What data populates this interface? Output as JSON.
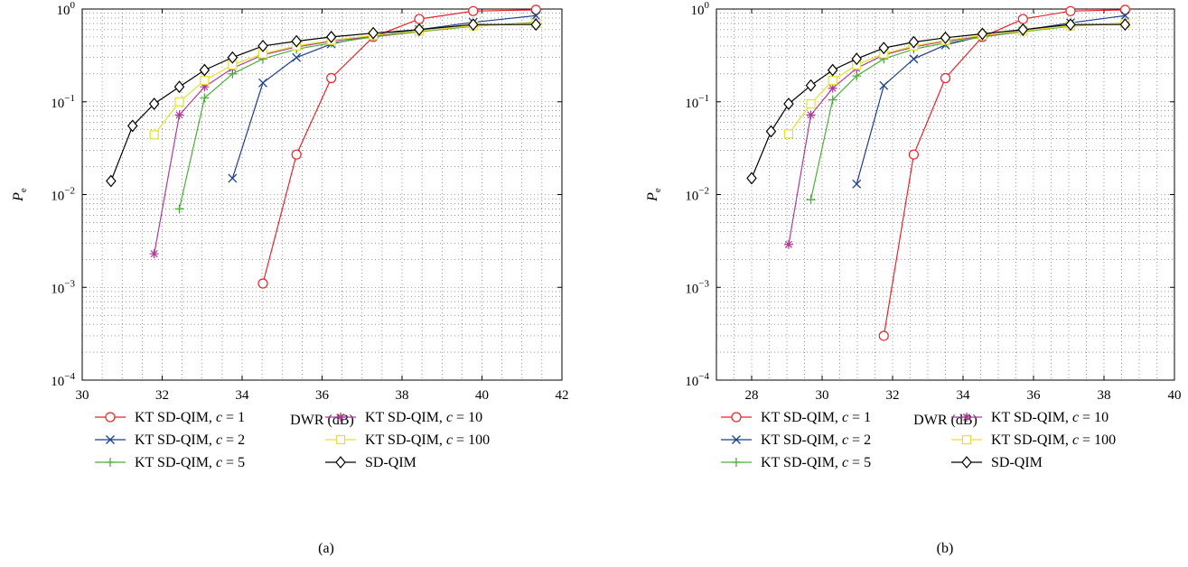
{
  "chart_data": [
    {
      "type": "line",
      "title": "",
      "caption": "(a)",
      "xlabel": "DWR (dB)",
      "ylabel": "P_e",
      "ylabel_main": "P",
      "ylabel_sub": "e",
      "y_scale": "log",
      "xlim": [
        30,
        42
      ],
      "ylim": [
        0.0001,
        1
      ],
      "x_ticks": [
        "30",
        "32",
        "34",
        "36",
        "38",
        "40",
        "42"
      ],
      "x_tick_values": [
        30,
        32,
        34,
        36,
        38,
        40,
        42
      ],
      "y_tick_values": [
        0.0001,
        0.001,
        0.01,
        0.1,
        1
      ],
      "y_tick_exponents": [
        "−4",
        "−3",
        "−2",
        "−1",
        "0"
      ],
      "y_tick_base": "10",
      "grid": true,
      "legend_position": "bottom",
      "series": [
        {
          "name": "KT SD-QIM, c = 1",
          "color": "#e8232a",
          "marker": "circle",
          "x": [
            34.52,
            35.36,
            36.23,
            37.28,
            38.43,
            39.78,
            41.35
          ],
          "y": [
            0.0011,
            0.027,
            0.18,
            0.5,
            0.78,
            0.95,
            0.98
          ]
        },
        {
          "name": "KT SD-QIM, c = 2",
          "color": "#1a3f8c",
          "marker": "x",
          "x": [
            33.76,
            34.52,
            35.36,
            36.23,
            37.28,
            38.43,
            39.78,
            41.35
          ],
          "y": [
            0.015,
            0.16,
            0.3,
            0.42,
            0.52,
            0.6,
            0.72,
            0.85
          ]
        },
        {
          "name": "KT SD-QIM, c = 5",
          "color": "#4cae3a",
          "marker": "plus",
          "x": [
            32.43,
            33.06,
            33.76,
            34.52,
            35.36,
            36.23,
            37.28,
            38.43,
            39.78,
            41.35
          ],
          "y": [
            0.007,
            0.11,
            0.2,
            0.29,
            0.37,
            0.43,
            0.5,
            0.57,
            0.65,
            0.72
          ]
        },
        {
          "name": "KT SD-QIM, c = 10",
          "color": "#b13a96",
          "marker": "star",
          "x": [
            31.8,
            32.43,
            33.06,
            33.76,
            34.52,
            35.36,
            36.23,
            37.28,
            38.43,
            39.78,
            41.35
          ],
          "y": [
            0.0023,
            0.072,
            0.145,
            0.23,
            0.32,
            0.39,
            0.45,
            0.51,
            0.58,
            0.66,
            0.7
          ]
        },
        {
          "name": "KT SD-QIM, c = 100",
          "color": "#e6e02a",
          "marker": "square",
          "x": [
            31.8,
            32.43,
            33.06,
            33.76,
            34.52,
            35.36,
            36.23,
            37.28,
            38.43,
            39.78,
            41.35
          ],
          "y": [
            0.044,
            0.1,
            0.17,
            0.25,
            0.33,
            0.4,
            0.46,
            0.52,
            0.58,
            0.66,
            0.7
          ]
        },
        {
          "name": "SD-QIM",
          "color": "#000000",
          "marker": "diamond",
          "x": [
            30.72,
            31.26,
            31.8,
            32.43,
            33.06,
            33.76,
            34.52,
            35.36,
            36.23,
            37.28,
            38.43,
            39.78,
            41.35
          ],
          "y": [
            0.014,
            0.055,
            0.095,
            0.145,
            0.22,
            0.3,
            0.4,
            0.45,
            0.5,
            0.55,
            0.6,
            0.68,
            0.68
          ]
        }
      ]
    },
    {
      "type": "line",
      "title": "",
      "caption": "(b)",
      "xlabel": "DWR (dB)",
      "ylabel": "P_e",
      "ylabel_main": "P",
      "ylabel_sub": "e",
      "y_scale": "log",
      "xlim": [
        27,
        40
      ],
      "ylim": [
        0.0001,
        1
      ],
      "x_ticks": [
        "28",
        "30",
        "32",
        "34",
        "36",
        "38",
        "40"
      ],
      "x_tick_values": [
        28,
        30,
        32,
        34,
        36,
        38,
        40
      ],
      "y_tick_values": [
        0.0001,
        0.001,
        0.01,
        0.1,
        1
      ],
      "y_tick_exponents": [
        "−4",
        "−3",
        "−2",
        "−1",
        "0"
      ],
      "y_tick_base": "10",
      "grid": true,
      "legend_position": "bottom",
      "series": [
        {
          "name": "KT SD-QIM, c = 1",
          "color": "#e8232a",
          "marker": "circle",
          "x": [
            31.75,
            32.6,
            33.5,
            34.55,
            35.7,
            37.05,
            38.6
          ],
          "y": [
            0.0003,
            0.027,
            0.18,
            0.5,
            0.78,
            0.95,
            0.98
          ]
        },
        {
          "name": "KT SD-QIM, c = 2",
          "color": "#1a3f8c",
          "marker": "x",
          "x": [
            30.98,
            31.75,
            32.6,
            33.5,
            34.55,
            35.7,
            37.05,
            38.6
          ],
          "y": [
            0.013,
            0.15,
            0.29,
            0.41,
            0.51,
            0.59,
            0.71,
            0.85
          ]
        },
        {
          "name": "KT SD-QIM, c = 5",
          "color": "#4cae3a",
          "marker": "plus",
          "x": [
            29.68,
            30.3,
            30.98,
            31.75,
            32.6,
            33.5,
            34.55,
            35.7,
            37.05,
            38.6
          ],
          "y": [
            0.0088,
            0.105,
            0.19,
            0.29,
            0.37,
            0.43,
            0.5,
            0.57,
            0.65,
            0.71
          ]
        },
        {
          "name": "KT SD-QIM, c = 10",
          "color": "#b13a96",
          "marker": "star",
          "x": [
            29.05,
            29.68,
            30.3,
            30.98,
            31.75,
            32.6,
            33.5,
            34.55,
            35.7,
            37.05,
            38.6
          ],
          "y": [
            0.0029,
            0.072,
            0.14,
            0.23,
            0.32,
            0.39,
            0.45,
            0.51,
            0.58,
            0.66,
            0.7
          ]
        },
        {
          "name": "KT SD-QIM, c = 100",
          "color": "#e6e02a",
          "marker": "square",
          "x": [
            29.05,
            29.68,
            30.3,
            30.98,
            31.75,
            32.6,
            33.5,
            34.55,
            35.7,
            37.05,
            38.6
          ],
          "y": [
            0.045,
            0.095,
            0.17,
            0.25,
            0.33,
            0.4,
            0.46,
            0.52,
            0.58,
            0.66,
            0.7
          ]
        },
        {
          "name": "SD-QIM",
          "color": "#000000",
          "marker": "diamond",
          "x": [
            28.0,
            28.55,
            29.05,
            29.68,
            30.3,
            30.98,
            31.75,
            32.6,
            33.5,
            34.55,
            35.7,
            37.05,
            38.6
          ],
          "y": [
            0.015,
            0.048,
            0.095,
            0.15,
            0.22,
            0.29,
            0.38,
            0.44,
            0.49,
            0.54,
            0.6,
            0.68,
            0.68
          ]
        }
      ]
    }
  ]
}
